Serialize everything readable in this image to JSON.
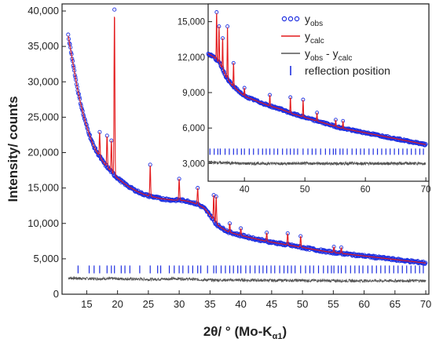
{
  "chart_data": [
    {
      "type": "line",
      "panel": "main",
      "xlabel": "2θ/ ° (Mo-Kα1)",
      "ylabel": "Intensity/ counts",
      "xlim": [
        11,
        70.5
      ],
      "ylim": [
        0,
        41000
      ],
      "x_ticks": [
        15,
        20,
        25,
        30,
        35,
        40,
        45,
        50,
        55,
        60,
        65,
        70
      ],
      "x_tick_labels": [
        "15",
        "20",
        "25",
        "30",
        "35",
        "40",
        "45",
        "50",
        "55",
        "60",
        "65",
        "70"
      ],
      "y_ticks": [
        0,
        5000,
        10000,
        15000,
        20000,
        25000,
        30000,
        35000,
        40000
      ],
      "y_tick_labels": [
        "0",
        "5,000",
        "10,000",
        "15,000",
        "20,000",
        "25,000",
        "30,000",
        "35,000",
        "40,000"
      ],
      "series": [
        {
          "name": "y_obs",
          "style": "open-circles",
          "color": "#1f2fe0",
          "x": [
            12,
            12.5,
            13,
            13.5,
            14,
            14.5,
            15,
            15.5,
            16,
            16.5,
            17,
            17.5,
            18,
            18.5,
            19,
            19.5,
            20,
            21,
            22,
            23,
            24,
            25,
            26,
            27,
            28,
            29,
            30,
            31,
            32,
            33,
            34,
            35,
            36,
            37,
            38,
            40,
            42,
            44,
            46,
            48,
            50,
            52,
            54,
            56,
            58,
            60,
            62,
            64,
            66,
            68,
            70
          ],
          "y": [
            36500,
            34000,
            31500,
            29000,
            27000,
            25200,
            23700,
            22400,
            21200,
            20300,
            19600,
            18900,
            18300,
            17800,
            17300,
            16800,
            16400,
            15700,
            15100,
            14600,
            14200,
            13900,
            13700,
            13500,
            13400,
            13300,
            13300,
            13200,
            13000,
            12700,
            12200,
            11200,
            9900,
            9300,
            8800,
            8300,
            7900,
            7500,
            7200,
            6900,
            6600,
            6300,
            6000,
            5800,
            5600,
            5400,
            5200,
            5000,
            4800,
            4600,
            4400
          ]
        },
        {
          "name": "y_calc",
          "style": "line",
          "color": "#e31a1c",
          "peaks": [
            {
              "x": 17.1,
              "y": 22900
            },
            {
              "x": 18.3,
              "y": 22400
            },
            {
              "x": 19.0,
              "y": 21700
            },
            {
              "x": 19.5,
              "y": 40200
            },
            {
              "x": 25.3,
              "y": 18300
            },
            {
              "x": 30.0,
              "y": 16300
            },
            {
              "x": 33.0,
              "y": 15000
            },
            {
              "x": 35.6,
              "y": 14000
            },
            {
              "x": 36.0,
              "y": 13800
            },
            {
              "x": 38.2,
              "y": 10000
            },
            {
              "x": 40.0,
              "y": 9300
            },
            {
              "x": 44.2,
              "y": 8700
            },
            {
              "x": 47.6,
              "y": 8600
            },
            {
              "x": 49.7,
              "y": 8200
            },
            {
              "x": 55.1,
              "y": 6700
            },
            {
              "x": 56.3,
              "y": 6600
            }
          ]
        },
        {
          "name": "y_obs - y_calc",
          "style": "line",
          "color": "#555555",
          "x": [
            12,
            15,
            20,
            25,
            30,
            35,
            40,
            45,
            50,
            55,
            60,
            65,
            70
          ],
          "y": [
            2300,
            2200,
            2200,
            2100,
            2200,
            2000,
            2000,
            1950,
            1950,
            1900,
            1900,
            1900,
            1900
          ]
        },
        {
          "name": "reflection position",
          "style": "ticks",
          "color": "#1f2fe0",
          "y": 3500,
          "x": [
            13.6,
            15.4,
            16.2,
            17.1,
            18.3,
            19.0,
            19.5,
            20.6,
            21.2,
            22.0,
            23.6,
            25.3,
            26.5,
            27.0,
            28.4,
            29.2,
            30.0,
            30.6,
            31.5,
            32.2,
            33.0,
            33.5,
            34.6,
            35.6,
            36.0,
            36.8,
            37.5,
            38.2,
            38.8,
            39.5,
            40.0,
            40.8,
            41.5,
            42.3,
            43.0,
            43.6,
            44.2,
            44.9,
            45.5,
            46.3,
            47.0,
            47.6,
            48.2,
            48.8,
            49.7,
            50.5,
            51.2,
            51.8,
            52.6,
            53.4,
            54.1,
            54.7,
            55.1,
            55.8,
            56.3,
            57.0,
            57.8,
            58.5,
            59.2,
            59.8,
            60.6,
            61.3,
            62.0,
            62.7,
            63.4,
            64.1,
            64.8,
            65.5,
            66.2,
            66.9,
            67.6,
            68.3,
            69.0,
            69.6
          ]
        }
      ]
    },
    {
      "type": "line",
      "panel": "inset",
      "xlim": [
        34,
        70.5
      ],
      "ylim": [
        1500,
        16500
      ],
      "x_ticks": [
        40,
        50,
        60,
        70
      ],
      "x_tick_labels": [
        "40",
        "50",
        "60",
        "70"
      ],
      "y_ticks": [
        3000,
        6000,
        9000,
        12000,
        15000
      ],
      "y_tick_labels": [
        "3,000",
        "6,000",
        "9,000",
        "12,000",
        "15,000"
      ],
      "series": [
        {
          "name": "y_obs",
          "style": "open-circles",
          "x": [
            34,
            35,
            36,
            37,
            38,
            40,
            42,
            44,
            46,
            48,
            50,
            52,
            54,
            56,
            58,
            60,
            62,
            64,
            66,
            68,
            70
          ],
          "y": [
            12300,
            12000,
            11400,
            10300,
            9600,
            8700,
            8300,
            7900,
            7600,
            7200,
            6900,
            6600,
            6300,
            6000,
            5800,
            5600,
            5400,
            5200,
            5000,
            4800,
            4600
          ]
        },
        {
          "name": "y_calc",
          "style": "line",
          "peaks": [
            {
              "x": 35.4,
              "y": 15800
            },
            {
              "x": 35.8,
              "y": 14600
            },
            {
              "x": 36.4,
              "y": 13600
            },
            {
              "x": 37.2,
              "y": 14600
            },
            {
              "x": 38.2,
              "y": 11500
            },
            {
              "x": 40.0,
              "y": 9400
            },
            {
              "x": 44.2,
              "y": 8800
            },
            {
              "x": 47.6,
              "y": 8600
            },
            {
              "x": 49.7,
              "y": 8400
            },
            {
              "x": 52.0,
              "y": 7300
            },
            {
              "x": 55.1,
              "y": 6700
            },
            {
              "x": 56.3,
              "y": 6600
            }
          ]
        },
        {
          "name": "y_obs - y_calc",
          "style": "line",
          "x": [
            34,
            40,
            50,
            60,
            70
          ],
          "y": [
            3100,
            3000,
            3000,
            3000,
            3000
          ]
        },
        {
          "name": "reflection position",
          "style": "ticks",
          "y": 4000,
          "x": [
            34.3,
            35.0,
            35.6,
            36.0,
            36.8,
            37.5,
            38.2,
            38.8,
            39.5,
            40.0,
            40.8,
            41.5,
            42.3,
            43.0,
            43.6,
            44.2,
            44.9,
            45.5,
            46.3,
            47.0,
            47.6,
            48.2,
            48.8,
            49.7,
            50.5,
            51.2,
            51.8,
            52.6,
            53.4,
            54.1,
            54.7,
            55.1,
            55.8,
            56.3,
            57.0,
            57.8,
            58.5,
            59.2,
            59.8,
            60.6,
            61.3,
            62.0,
            62.7,
            63.4,
            64.1,
            64.8,
            65.5,
            66.2,
            66.9,
            67.6,
            68.3,
            69.0,
            69.6
          ]
        }
      ]
    }
  ],
  "legend": {
    "position": "top-right of inset",
    "entries": [
      {
        "base": "y",
        "sub": "obs",
        "text": "",
        "style": "open-circles",
        "color": "#1f2fe0"
      },
      {
        "base": "y",
        "sub": "calc",
        "text": "",
        "style": "line",
        "color": "#e31a1c"
      },
      {
        "base": "y",
        "sub": "obs",
        "text": " - y",
        "sub2": "calc",
        "style": "line",
        "color": "#555555"
      },
      {
        "base": "reflection position",
        "sub": "",
        "text": "",
        "style": "tick",
        "color": "#1f2fe0"
      }
    ]
  },
  "labels": {
    "xlabel_prefix": "2θ/ ° (Mo-K",
    "xlabel_sub": "α1",
    "xlabel_suffix": ")",
    "ylabel": "Intensity/ counts"
  }
}
